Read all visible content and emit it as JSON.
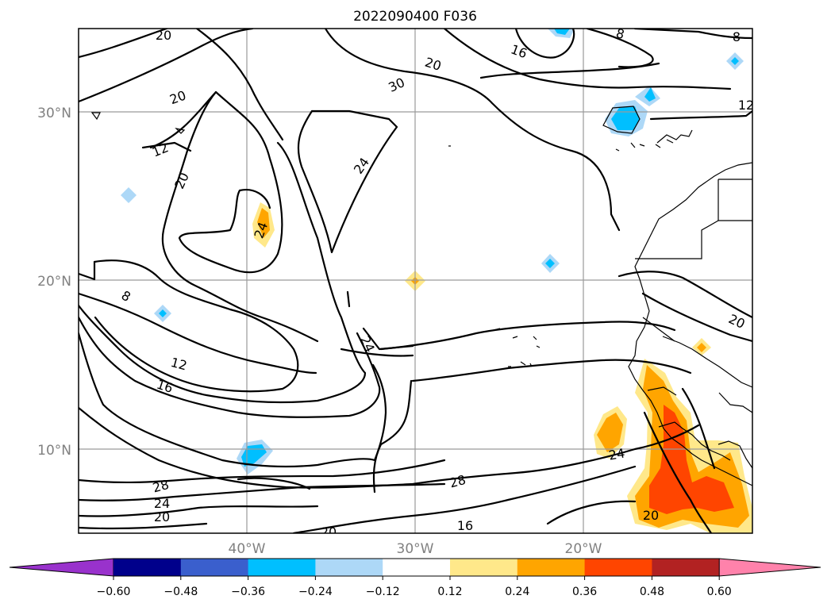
{
  "title": "2022090400 F036",
  "map": {
    "lat_labels": [
      "30°N",
      "20°N",
      "10°N"
    ],
    "lon_labels": [
      "40°W",
      "30°W",
      "20°W"
    ],
    "contour_labels": [
      "20",
      "16",
      "20",
      "8",
      "8",
      "30",
      "20",
      "12",
      "12",
      "20",
      "24",
      "24",
      "8",
      "12",
      "16",
      "24",
      "20",
      "24",
      "28",
      "28",
      "24",
      "20",
      "20",
      "16",
      "20"
    ]
  },
  "colorbar": {
    "ticks": [
      "−0.60",
      "−0.48",
      "−0.36",
      "−0.24",
      "−0.12",
      "0.12",
      "0.24",
      "0.36",
      "0.48",
      "0.60"
    ],
    "colors": [
      "#9932cc",
      "#00008b",
      "#3a5fcd",
      "#00bfff",
      "#add8f7",
      "#ffffff",
      "#ffe88a",
      "#ffa500",
      "#ff4500",
      "#b22222",
      "#ff82ab"
    ]
  }
}
